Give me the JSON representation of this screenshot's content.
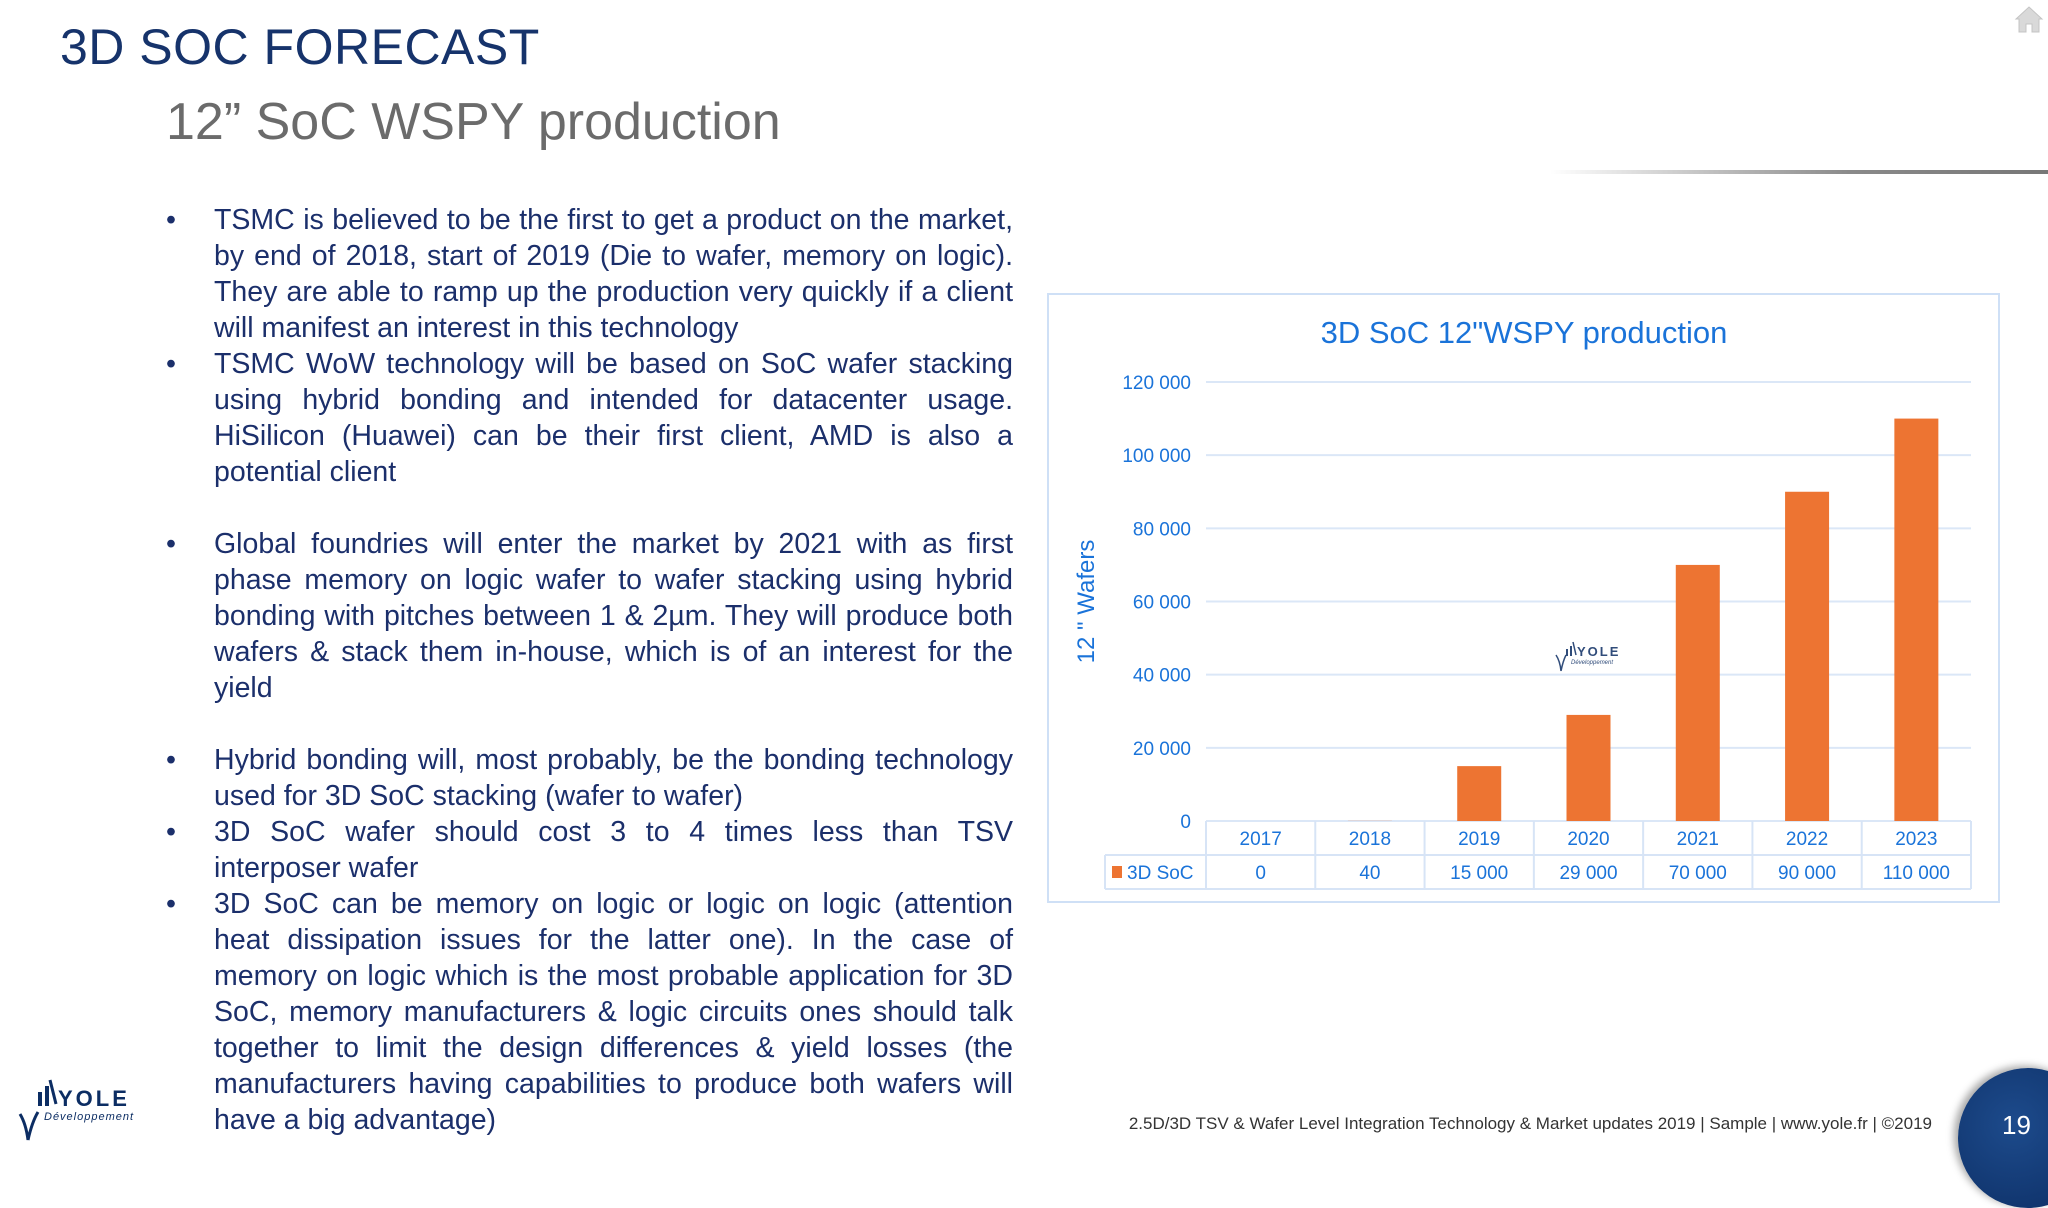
{
  "header": {
    "title": "3D SOC FORECAST",
    "subtitle": "12” SoC WSPY production"
  },
  "bullets": [
    "TSMC is believed to be the first to get a product on the market, by end of 2018, start of 2019 (Die to wafer, memory on logic). They are able to ramp up the production very quickly if a client will manifest an interest in this technology",
    "TSMC WoW technology will be based on SoC wafer stacking using hybrid bonding and intended for datacenter usage. HiSilicon (Huawei) can be their first client, AMD is also a potential client",
    "Global foundries will enter the market by 2021 with as first phase memory on logic wafer to wafer stacking using hybrid bonding with pitches between 1 & 2µm. They will produce both wafers & stack them in-house, which is of an interest for the yield",
    "Hybrid bonding will, most probably, be the bonding technology used for 3D SoC stacking (wafer to wafer)",
    "3D SoC wafer should cost 3 to 4 times less than TSV interposer wafer",
    "3D SoC can be memory on logic or logic on logic (attention heat dissipation issues for the latter one). In the case of memory on logic which is the most probable application for 3D SoC, memory manufacturers & logic circuits ones should talk together to limit the design differences & yield losses (the manufacturers having capabilities to produce both wafers will have a big advantage)"
  ],
  "bullet_symbol": "•",
  "chart_data": {
    "type": "bar",
    "title": "3D SoC 12\"WSPY production",
    "ylabel": "12 \" Wafers",
    "xlabel": "",
    "categories": [
      "2017",
      "2018",
      "2019",
      "2020",
      "2021",
      "2022",
      "2023"
    ],
    "series": [
      {
        "name": "3D SoC",
        "values": [
          0,
          40,
          15000,
          29000,
          70000,
          90000,
          110000
        ],
        "labels": [
          "0",
          "40",
          "15 000",
          "29 000",
          "70 000",
          "90 000",
          "110 000"
        ],
        "color": "#ed7432"
      }
    ],
    "ylim": [
      0,
      120000
    ],
    "yticks": [
      0,
      20000,
      40000,
      60000,
      80000,
      100000,
      120000
    ],
    "ytick_labels": [
      "0",
      "20 000",
      "40 000",
      "60 000",
      "80 000",
      "100 000",
      "120 000"
    ],
    "grid": true,
    "legend": "data-table",
    "watermark": "YOLE Développement"
  },
  "colors": {
    "title": "#16336b",
    "chart_text": "#1a73d9",
    "bar": "#ed7432",
    "page_circle": "#0c2d63"
  },
  "footer": {
    "text": "2.5D/3D TSV & Wafer Level Integration Technology & Market updates 2019 | Sample | www.yole.fr | ©2019",
    "page": "19"
  },
  "logo": {
    "name": "YOLE",
    "tagline": "Développement"
  }
}
